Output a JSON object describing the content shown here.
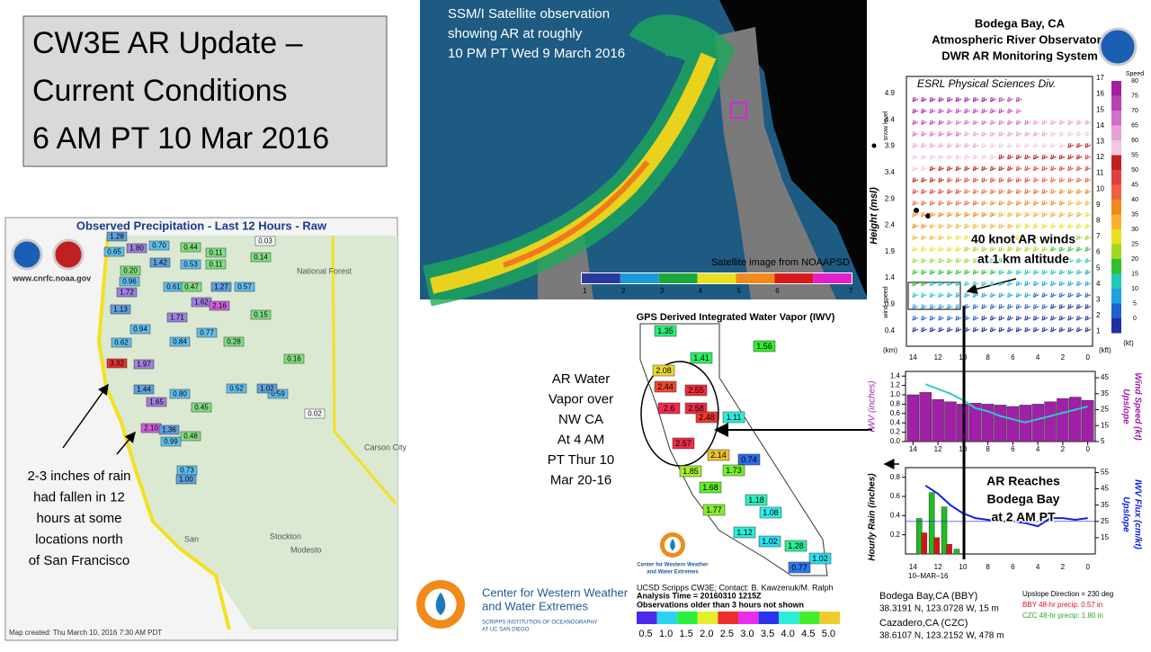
{
  "title": {
    "lines": [
      "CW3E AR Update –",
      "Current Conditions",
      "6 AM PT 10 Mar 2016"
    ]
  },
  "satellite": {
    "caption": [
      "SSM/I Satellite observation",
      "showing AR at roughly",
      "10 PM PT Wed 9 March 2016"
    ],
    "credit": "Satellite image from NOAAPSD",
    "colorbar": [
      1,
      2,
      3,
      4,
      5,
      6,
      7
    ]
  },
  "precip_map": {
    "title": "Observed Precipitation - Last 12 Hours - Raw",
    "website": "www.cnrfc.noaa.gov",
    "footer": "Map created: Thu March 10, 2016 7:30 AM PDT",
    "places": [
      "National Forest",
      "Carson City",
      "Stockton",
      "Modesto",
      "San"
    ],
    "gauges": [
      "1.28",
      "0.70",
      "0.44",
      "1.80",
      "0.03",
      "0.65",
      "0.11",
      "0.14",
      "1.42",
      "0.53",
      "0.11",
      "0.20",
      "0.96",
      "0.61",
      "0.47",
      "1.27",
      "0.57",
      "1.72",
      "1.62",
      "2.16",
      "1.71",
      "1.13",
      "0.94",
      "0.62",
      "3.32",
      "1.44",
      "1.65",
      "2.10",
      "1.36",
      "0.99",
      "0.73",
      "1.00",
      "0.52",
      "0.80",
      "0.45",
      "0.48",
      "0.16",
      "0.59",
      "0.02",
      "1.02",
      "1.97",
      "0.77",
      "0.84",
      "0.28",
      "0.15"
    ]
  },
  "precip_note": [
    "2-3 inches of rain",
    "had fallen in 12",
    "hours at some",
    "locations north",
    "of San Francisco"
  ],
  "iwv_map": {
    "title": "GPS Derived Integrated Water Vapor (IWV)",
    "stations": [
      1.35,
      1.56,
      1.41,
      2.08,
      2.44,
      2.55,
      2.6,
      2.58,
      2.48,
      1.11,
      2.57,
      2.14,
      0.74,
      1.85,
      1.73,
      1.68,
      1.18,
      1.77,
      1.08,
      1.12,
      1.02,
      1.28,
      1.02,
      0.77
    ],
    "credit": "UCSD Scripps CW3E; Contact: B. Kawzenuk/M. Ralph",
    "analysis": "Analysis Time = 20160310 1215Z",
    "note": "Observations older than 3 hours not shown",
    "colorbar": [
      0.5,
      {
        "value": 1,
        "label": "1.0"
      },
      1.5,
      {
        "value": 2,
        "label": "2.0"
      },
      2.5,
      {
        "value": 3,
        "label": "3.0"
      },
      3.5,
      {
        "value": 4,
        "label": "4.0"
      },
      4.5,
      {
        "value": 5,
        "label": "5.0"
      }
    ]
  },
  "iwv_note": [
    "AR Water",
    "Vapor over",
    "NW CA",
    "At 4 AM",
    "PT Thur 10",
    "Mar 20-16"
  ],
  "cw3e": {
    "name": [
      "Center for Western Weather",
      "and Water Extremes"
    ],
    "institution": [
      "SCRIPPS INSTITUTION OF OCEANOGRAPHY",
      "AT UC SAN DIEGO"
    ]
  },
  "profiler": {
    "title": [
      "Bodega Bay, CA",
      "Atmospheric River Observatory",
      "DWR AR Monitoring System"
    ],
    "credit": "ESRL Physical Sciences Div.",
    "km_ticks": [
      4.9,
      4.4,
      3.9,
      3.4,
      2.9,
      2.4,
      1.9,
      1.4,
      0.9,
      0.4
    ],
    "kft_ticks": [
      17,
      16,
      15,
      14,
      13,
      12,
      11,
      10,
      9,
      8,
      7,
      6,
      5,
      4,
      3,
      2,
      1
    ],
    "km_unit": "(km)",
    "kft_unit": "(kft)",
    "speed_label": "Speed",
    "speed_ticks": [
      80,
      75,
      70,
      65,
      60,
      55,
      50,
      45,
      40,
      35,
      30,
      25,
      20,
      15,
      10,
      5,
      0
    ],
    "speed_unit": "(kt)",
    "height_label": "Height (msl)",
    "snow_label": "snow level",
    "wind_label": "wind speed",
    "annotation": [
      "40 knot AR winds",
      "at 1 km altitude"
    ]
  },
  "iwv_panel": {
    "xlim": [
      14.6,
      -0.6
    ],
    "xticks": [
      14,
      12,
      10,
      8,
      6,
      4,
      2,
      0
    ],
    "ylim": [
      0,
      1.5
    ],
    "yticks": [
      1.4,
      1.2,
      {
        "value": 1,
        "label": "1.0"
      },
      0.8,
      0.6,
      0.4,
      0.2,
      {
        "value": 0,
        "label": "0.0"
      }
    ],
    "y2lim": [
      5,
      49
    ],
    "y2ticks": [
      45,
      35,
      25,
      15,
      5
    ],
    "ylabel": "IWV (inches)",
    "y2label": [
      "Upslope",
      "Wind Speed (kt)"
    ],
    "bars": {
      "x": [
        14,
        13,
        12,
        11,
        10,
        9,
        8,
        7,
        6,
        5,
        4,
        3,
        2,
        1,
        0
      ],
      "values": [
        1.0,
        1.05,
        0.9,
        0.85,
        0.8,
        0.82,
        0.8,
        0.78,
        0.75,
        0.78,
        0.8,
        0.85,
        0.92,
        0.95,
        0.88
      ],
      "color": "#a020a8"
    },
    "line": {
      "x": [
        13,
        12,
        11,
        10,
        9,
        8,
        7,
        6,
        5,
        4,
        3,
        2,
        1,
        0
      ],
      "values": [
        41,
        38,
        35,
        31,
        26,
        24,
        21,
        19,
        17,
        19,
        21,
        23,
        25,
        27
      ],
      "color": "#30c8c8"
    }
  },
  "rain_panel": {
    "xlim": [
      14.6,
      -0.6
    ],
    "ylim": [
      0,
      0.9
    ],
    "yticks": [
      0.8,
      0.6,
      0.4,
      0.2
    ],
    "y2lim": [
      5,
      58
    ],
    "y2ticks": [
      55,
      45,
      35,
      25,
      15
    ],
    "ylabel": "Hourly Rain (inches)",
    "y2label": [
      "Upslope",
      "IWV Flux (cm/kt)"
    ],
    "date": "10–MAR–16",
    "czc_bars": {
      "x": [
        13.5,
        12.5,
        11.5,
        10.5
      ],
      "values": [
        0.37,
        0.64,
        0.49,
        0.05
      ],
      "color": "#22bb22"
    },
    "bby_bars": {
      "x": [
        13.1,
        12.1,
        11.1
      ],
      "values": [
        0.22,
        0.17,
        0.1
      ],
      "color": "#dd1111"
    },
    "flux": {
      "x": [
        13,
        12,
        11,
        10,
        9,
        8,
        7,
        6,
        5,
        4,
        3,
        2,
        1,
        0
      ],
      "values": [
        47,
        42,
        35,
        30,
        27,
        26,
        25,
        25,
        24,
        22,
        27,
        27,
        26,
        27
      ],
      "color": "#1020e0"
    },
    "annotation": [
      "AR Reaches",
      "Bodega Bay",
      "at 2 AM PT"
    ]
  },
  "stations": {
    "bby": [
      "Bodega Bay,CA (BBY)",
      "38.3191 N, 123.0728 W, 15 m"
    ],
    "czc": [
      "Cazadero,CA (CZC)",
      "38.6107 N, 123.2152 W, 478 m"
    ],
    "upslope": "Upslope Direction = 230 deg",
    "bby_precip": "BBY 48-hr precip: 0.57 in",
    "czc_precip": "CZC 48-hr precip: 1.80 in"
  }
}
